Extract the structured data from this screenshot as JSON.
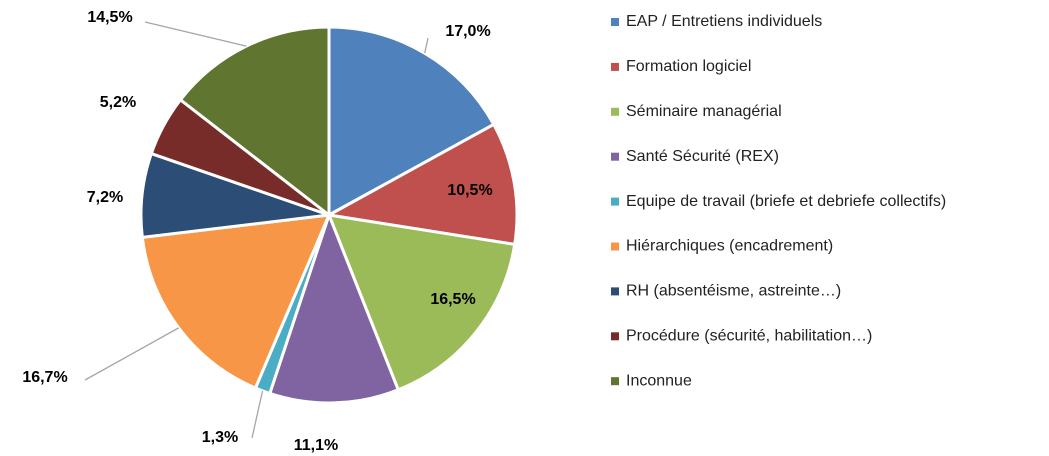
{
  "chart_data": {
    "type": "pie",
    "categories": [
      "EAP / Entretiens individuels",
      "Formation logiciel",
      "Séminaire managérial",
      "Santé Sécurité (REX)",
      "Equipe de travail (briefe et debriefe collectifs)",
      "Hiérarchiques (encadrement)",
      "RH (absentéisme, astreinte…)",
      "Procédure (sécurité, habilitation…)",
      "Inconnue"
    ],
    "values": [
      17.0,
      10.5,
      16.5,
      11.1,
      1.3,
      16.7,
      7.2,
      5.2,
      14.5
    ],
    "value_labels": [
      "17,0%",
      "10,5%",
      "16,5%",
      "11,1%",
      "1,3%",
      "16,7%",
      "7,2%",
      "5,2%",
      "14,5%"
    ],
    "colors": [
      "#4f81bd",
      "#c0504d",
      "#9bbb59",
      "#8064a2",
      "#4bacc6",
      "#f79646",
      "#2c4d75",
      "#772c2a",
      "#5f7530"
    ],
    "legend": "right"
  }
}
